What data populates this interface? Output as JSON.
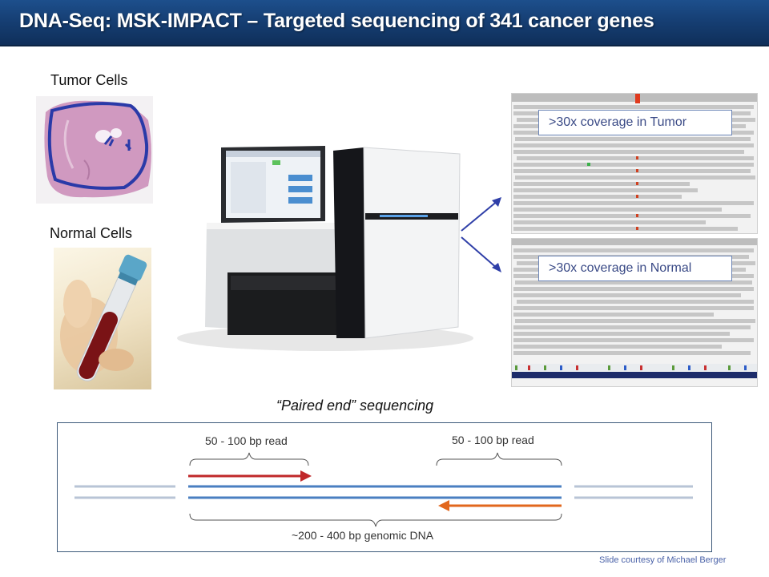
{
  "title": "DNA-Seq: MSK-IMPACT – Targeted sequencing of 341 cancer genes",
  "tumor_label": "Tumor Cells",
  "normal_label": "Normal Cells",
  "tumor_coverage": ">30x coverage in Tumor",
  "normal_coverage": ">30x coverage in Normal",
  "paired_title": "“Paired end” sequencing",
  "left_read": "50 - 100 bp read",
  "right_read": "50 - 100 bp read",
  "genomic_dna": "~200 - 400 bp genomic DNA",
  "credit": "Slide courtesy of Michael Berger",
  "colors": {
    "title_bar": "#163f74",
    "forward_read": "#c0282a",
    "reverse_read": "#e2671d",
    "dna_strand": "#4a7fc1"
  }
}
